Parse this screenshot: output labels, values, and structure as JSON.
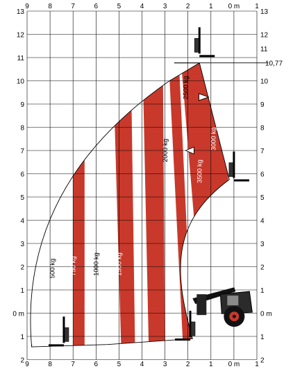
{
  "chart_data": {
    "type": "load-chart",
    "x_axis": {
      "range": [
        -1,
        9
      ],
      "ticks": [
        {
          "v": 9,
          "label": "9"
        },
        {
          "v": 8,
          "label": "8"
        },
        {
          "v": 7,
          "label": "7"
        },
        {
          "v": 6,
          "label": "6"
        },
        {
          "v": 5,
          "label": "5"
        },
        {
          "v": 4,
          "label": "4"
        },
        {
          "v": 3,
          "label": "3"
        },
        {
          "v": 2,
          "label": "2"
        },
        {
          "v": 1,
          "label": "1"
        },
        {
          "v": 0,
          "label": "0 m"
        },
        {
          "v": -1,
          "label": "1"
        }
      ]
    },
    "y_axis": {
      "range": [
        -2,
        13
      ],
      "left_ticks": [
        {
          "v": 13,
          "label": "13"
        },
        {
          "v": 12,
          "label": "12"
        },
        {
          "v": 11,
          "label": "11"
        },
        {
          "v": 10,
          "label": "10"
        },
        {
          "v": 9,
          "label": "9"
        },
        {
          "v": 8,
          "label": "8"
        },
        {
          "v": 7,
          "label": "7"
        },
        {
          "v": 6,
          "label": "6"
        },
        {
          "v": 5,
          "label": "5"
        },
        {
          "v": 4,
          "label": "4"
        },
        {
          "v": 3,
          "label": "3"
        },
        {
          "v": 2,
          "label": "2"
        },
        {
          "v": 1,
          "label": "1"
        },
        {
          "v": 0,
          "label": "0 m"
        },
        {
          "v": -1,
          "label": "1"
        },
        {
          "v": -2,
          "label": "2"
        }
      ],
      "right_ticks": [
        {
          "v": 13,
          "label": "13"
        },
        {
          "v": 12,
          "label": "12"
        },
        {
          "v": 10,
          "label": "10"
        },
        {
          "v": 9,
          "label": "9"
        },
        {
          "v": 8,
          "label": "8"
        },
        {
          "v": 7,
          "label": "7"
        },
        {
          "v": 6,
          "label": "6"
        },
        {
          "v": 5,
          "label": "5"
        },
        {
          "v": 4,
          "label": "4"
        },
        {
          "v": 3,
          "label": "3"
        },
        {
          "v": 2,
          "label": "2"
        },
        {
          "v": 1,
          "label": "1"
        },
        {
          "v": 0,
          "label": "0 m"
        },
        {
          "v": -1,
          "label": "1"
        },
        {
          "v": -2,
          "label": "2"
        }
      ],
      "extra_labels": [
        {
          "v": 11,
          "label": "11"
        },
        {
          "v": 10.77,
          "label": "10,77"
        }
      ]
    },
    "max_height": 10.77,
    "load_zones": [
      {
        "label": "500 kg",
        "x": 7.8,
        "y": 1.5,
        "color": "#000000"
      },
      {
        "label": "750 kg",
        "x": 6.9,
        "y": 1.6,
        "color": "#ffffff"
      },
      {
        "label": "1000 kg",
        "x": 5.9,
        "y": 1.6,
        "color": "#000000"
      },
      {
        "label": "1500 kg",
        "x": 4.9,
        "y": 1.6,
        "color": "#ffffff"
      },
      {
        "label": "2000 kg",
        "x": 2.9,
        "y": 6.5,
        "color": "#000000"
      },
      {
        "label": "2500 kg",
        "x": 2.0,
        "y": 9.2,
        "color": "#000000"
      },
      {
        "label": "3000 kg",
        "x": 0.8,
        "y": 7.0,
        "color": "#ffffff"
      },
      {
        "label": "3500 kg",
        "x": 1.4,
        "y": 5.6,
        "color": "#ffffff"
      }
    ],
    "colors": {
      "stripe": "#c8392b",
      "grid": "#000000"
    }
  }
}
